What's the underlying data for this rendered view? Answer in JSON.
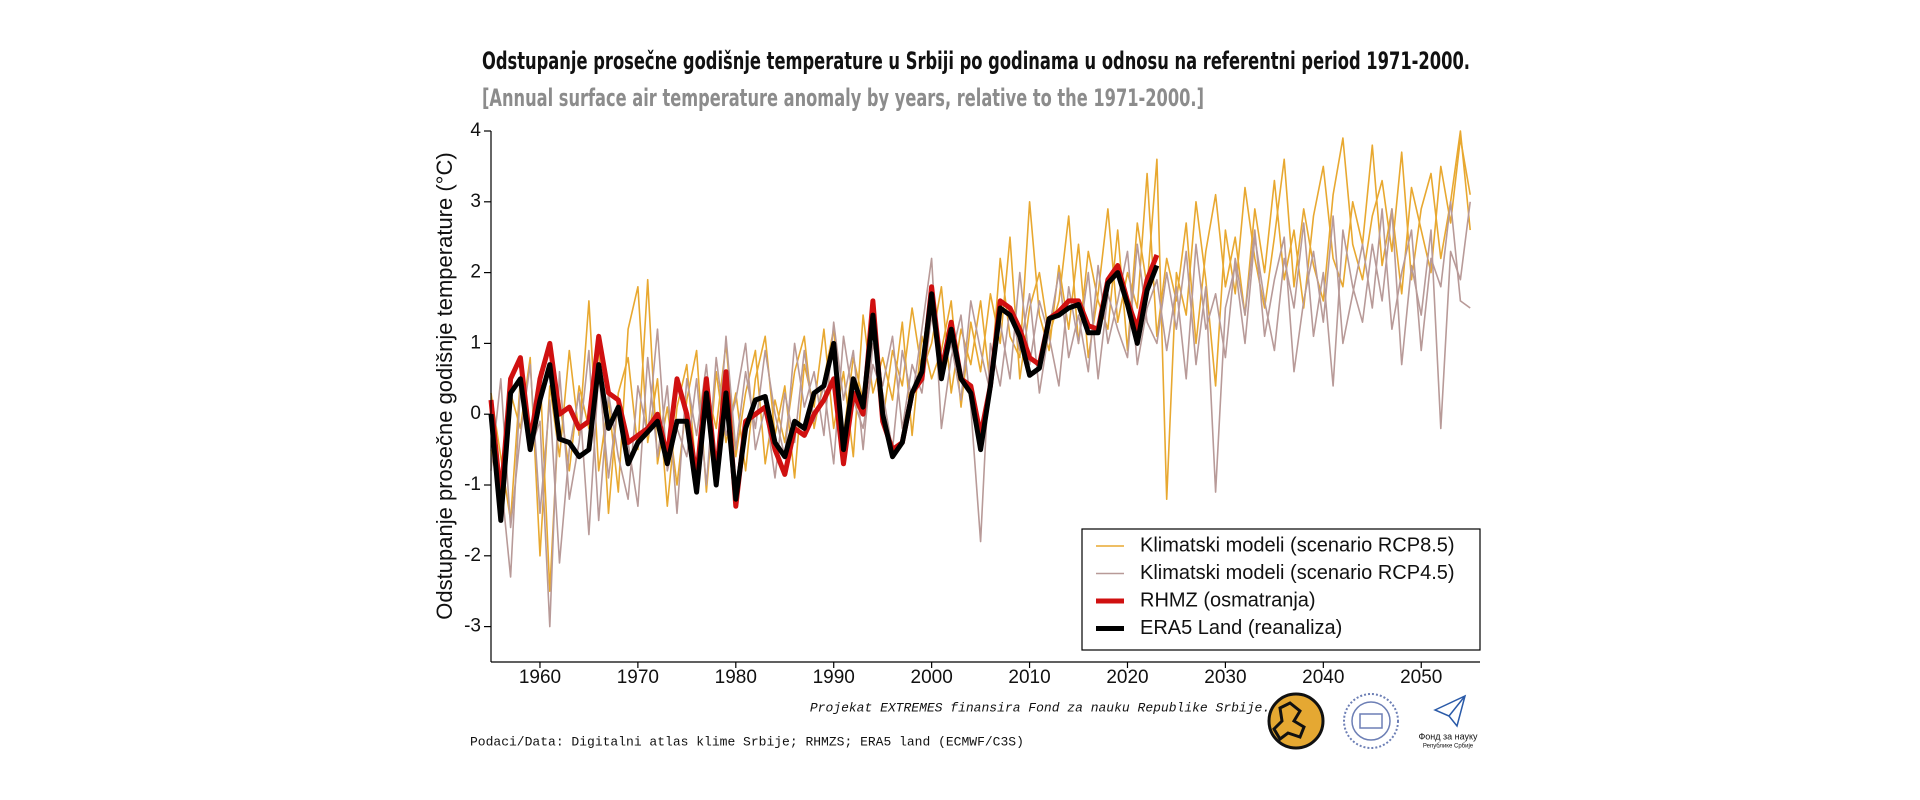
{
  "chart_data": {
    "type": "line",
    "title": "Odstupanje prosečne godišnje temperature u Srbiji po godinama u odnosu na referentni period 1971-2000.",
    "subtitle": "[Annual surface air temperature anomaly by years, relative to the 1971-2000.]",
    "y_label": "Odstupanje prosečne godišnje temperature (°C)",
    "funding_note": "Projekat EXTREMES finansira Fond za nauku Republike Srbije.",
    "source": "Podaci/Data: Digitalni atlas klime Srbije; RHMZS; ERA5 land (ECMWF/C3S)",
    "logo_text": [
      "Фонд за науку",
      "Републике Србије"
    ],
    "xlim": [
      1955,
      2056
    ],
    "ylim": [
      -3.5,
      4
    ],
    "xticks": [
      1960,
      1970,
      1980,
      1990,
      2000,
      2010,
      2020,
      2030,
      2040,
      2050
    ],
    "yticks": [
      -3,
      -2,
      -1,
      0,
      1,
      2,
      3,
      4
    ],
    "legend": "lower right",
    "x": [
      1955,
      1956,
      1957,
      1958,
      1959,
      1960,
      1961,
      1962,
      1963,
      1964,
      1965,
      1966,
      1967,
      1968,
      1969,
      1970,
      1971,
      1972,
      1973,
      1974,
      1975,
      1976,
      1977,
      1978,
      1979,
      1980,
      1981,
      1982,
      1983,
      1984,
      1985,
      1986,
      1987,
      1988,
      1989,
      1990,
      1991,
      1992,
      1993,
      1994,
      1995,
      1996,
      1997,
      1998,
      1999,
      2000,
      2001,
      2002,
      2003,
      2004,
      2005,
      2006,
      2007,
      2008,
      2009,
      2010,
      2011,
      2012,
      2013,
      2014,
      2015,
      2016,
      2017,
      2018,
      2019,
      2020,
      2021,
      2022,
      2023,
      2024,
      2025,
      2026,
      2027,
      2028,
      2029,
      2030,
      2031,
      2032,
      2033,
      2034,
      2035,
      2036,
      2037,
      2038,
      2039,
      2040,
      2041,
      2042,
      2043,
      2044,
      2045,
      2046,
      2047,
      2048,
      2049,
      2050,
      2051,
      2052,
      2053,
      2054,
      2055
    ],
    "series": [
      {
        "name": "Klimatski modeli (scenario RCP8.5)",
        "color": "#e8a830",
        "width": 1.6,
        "runs": [
          [
            -0.5,
            -1.2,
            0.3,
            -0.2,
            0.8,
            -2.0,
            0.4,
            -0.6,
            0.9,
            -0.3,
            1.6,
            -0.8,
            0.2,
            -1.1,
            1.2,
            1.8,
            -0.4,
            0.5,
            -1.3,
            0.1,
            0.7,
            -0.9,
            0.4,
            -0.2,
            1.0,
            -0.6,
            0.3,
            0.9,
            -0.7,
            0.2,
            -0.4,
            0.6,
            1.1,
            -0.2,
            0.5,
            1.2,
            -0.3,
            0.8,
            0.2,
            1.3,
            -0.1,
            0.9,
            0.4,
            1.5,
            0.6,
            1.0,
            1.8,
            0.3,
            1.2,
            0.7,
            1.6,
            0.4,
            2.2,
            1.1,
            0.8,
            3.0,
            1.4,
            0.9,
            2.1,
            1.2,
            2.4,
            0.8,
            1.7,
            2.9,
            1.3,
            2.0,
            1.5,
            3.4,
            1.1,
            2.2,
            1.6,
            2.7,
            1.0,
            2.3,
            3.1,
            1.8,
            2.5,
            1.4,
            2.9,
            2.0,
            3.3,
            1.9,
            2.6,
            1.5,
            2.8,
            3.5,
            2.2,
            1.8,
            3.0,
            2.4,
            3.8,
            2.1,
            2.9,
            1.7,
            3.2,
            2.6,
            2.0,
            3.5,
            2.7,
            3.9,
            3.1
          ],
          [
            0.3,
            -0.6,
            -1.5,
            0.5,
            -0.3,
            0.6,
            -2.5,
            0.2,
            -0.8,
            0.4,
            -0.2,
            1.0,
            -1.4,
            0.3,
            0.8,
            -0.5,
            1.9,
            -0.7,
            0.1,
            -1.0,
            0.2,
            0.9,
            -1.1,
            0.6,
            -0.4,
            0.3,
            -0.8,
            0.5,
            1.1,
            -0.3,
            0.4,
            -0.9,
            0.7,
            0.1,
            1.2,
            -0.2,
            0.6,
            -0.6,
            1.4,
            0.3,
            0.8,
            0.2,
            1.3,
            -0.3,
            1.1,
            0.5,
            0.9,
            1.6,
            0.1,
            1.3,
            0.6,
            1.7,
            1.0,
            2.5,
            0.5,
            1.5,
            2.0,
            1.1,
            1.6,
            2.8,
            1.0,
            2.3,
            1.6,
            1.2,
            2.6,
            0.9,
            2.7,
            1.8,
            3.6,
            -1.2,
            2.0,
            1.4,
            3.0,
            1.9,
            0.4,
            2.6,
            1.7,
            3.2,
            2.2,
            1.5,
            2.5,
            3.6,
            1.8,
            2.9,
            2.1,
            1.6,
            3.1,
            3.9,
            2.4,
            1.9,
            2.8,
            3.3,
            2.3,
            3.7,
            1.9,
            2.9,
            3.4,
            2.2,
            3.0,
            4.0,
            2.6
          ]
        ]
      },
      {
        "name": "Klimatski modeli (scenario RCP4.5)",
        "color": "#b89a98",
        "width": 1.6,
        "runs": [
          [
            0.1,
            -0.9,
            -2.3,
            0.4,
            -0.5,
            -0.1,
            -3.0,
            0.6,
            -1.2,
            -0.4,
            0.9,
            -1.5,
            0.3,
            -0.6,
            -1.2,
            0.4,
            -0.3,
            1.2,
            -0.8,
            -0.2,
            -0.6,
            0.5,
            -1.0,
            0.8,
            -0.3,
            0.2,
            1.0,
            -0.5,
            0.1,
            -0.9,
            0.3,
            -0.4,
            0.9,
            -0.1,
            0.4,
            -0.7,
            1.1,
            0.2,
            -0.2,
            0.7,
            0.3,
            -0.5,
            0.9,
            0.2,
            1.2,
            2.2,
            -0.2,
            0.8,
            1.4,
            0.1,
            -1.8,
            1.0,
            0.4,
            1.5,
            0.9,
            1.7,
            0.3,
            1.2,
            2.0,
            0.8,
            1.4,
            0.6,
            2.1,
            1.0,
            1.6,
            2.3,
            0.7,
            1.5,
            1.9,
            0.9,
            1.8,
            0.5,
            2.4,
            1.2,
            1.7,
            0.8,
            2.2,
            1.4,
            2.6,
            1.1,
            1.9,
            2.5,
            0.6,
            1.6,
            2.3,
            1.3,
            2.8,
            1.0,
            1.7,
            2.4,
            1.5,
            2.9,
            1.2,
            2.0,
            2.6,
            0.9,
            2.2,
            1.8,
            3.0,
            1.6,
            1.5
          ],
          [
            -0.8,
            0.5,
            -1.6,
            -0.3,
            0.7,
            -1.4,
            0.2,
            -2.1,
            -0.5,
            0.3,
            -1.7,
            0.6,
            -0.9,
            0.2,
            -0.4,
            -1.3,
            0.8,
            -0.6,
            0.4,
            -1.4,
            0.5,
            -0.3,
            0.7,
            -0.8,
            1.1,
            -0.5,
            0.6,
            -0.2,
            0.9,
            0.0,
            -0.6,
            1.0,
            0.1,
            0.6,
            -0.3,
            1.3,
            0.2,
            0.9,
            -0.5,
            1.0,
            0.4,
            1.1,
            -0.2,
            0.7,
            0.3,
            1.4,
            0.5,
            1.0,
            0.2,
            1.6,
            0.9,
            0.3,
            1.3,
            0.5,
            2.0,
            0.7,
            1.6,
            1.1,
            0.4,
            1.8,
            1.0,
            2.0,
            0.5,
            1.7,
            1.2,
            0.8,
            2.4,
            1.3,
            1.0,
            2.0,
            1.2,
            2.3,
            0.7,
            1.8,
            -1.1,
            1.5,
            2.1,
            1.0,
            2.5,
            1.6,
            0.9,
            2.2,
            1.5,
            2.7,
            1.1,
            2.0,
            0.4,
            2.6,
            1.8,
            1.3,
            2.4,
            1.6,
            2.9,
            0.7,
            2.1,
            1.4,
            2.6,
            -0.2,
            2.3,
            1.9,
            3.0
          ]
        ]
      },
      {
        "name": "RHMZ (osmatranja)",
        "color": "#d01010",
        "width": 5,
        "runs": [
          [
            0.2,
            -1.2,
            0.5,
            0.8,
            -0.4,
            0.5,
            1.0,
            0.0,
            0.1,
            -0.2,
            -0.1,
            1.1,
            0.3,
            0.2,
            -0.4,
            -0.3,
            -0.2,
            0.0,
            -0.6,
            0.5,
            0.0,
            -0.9,
            0.5,
            -0.9,
            0.6,
            -1.3,
            -0.1,
            0.0,
            0.1,
            -0.5,
            -0.85,
            -0.2,
            -0.3,
            0.0,
            0.2,
            0.5,
            -0.7,
            0.3,
            0.0,
            1.6,
            -0.1,
            -0.5,
            -0.4,
            0.3,
            0.5,
            1.8,
            0.6,
            1.3,
            0.5,
            0.4,
            -0.3,
            0.4,
            1.6,
            1.5,
            1.2,
            0.8,
            0.7,
            1.35,
            1.45,
            1.6,
            1.6,
            1.25,
            1.2,
            1.9,
            2.1,
            1.6,
            1.2,
            1.9,
            2.25,
            null,
            null,
            null,
            null,
            null,
            null,
            null,
            null,
            null,
            null,
            null,
            null,
            null,
            null,
            null,
            null,
            null,
            null,
            null,
            null,
            null,
            null,
            null,
            null,
            null,
            null,
            null,
            null,
            null,
            null,
            null,
            null,
            null
          ]
        ]
      },
      {
        "name": "ERA5 Land (reanaliza)",
        "color": "#000000",
        "width": 5,
        "runs": [
          [
            0.0,
            -1.5,
            0.3,
            0.5,
            -0.5,
            0.2,
            0.7,
            -0.35,
            -0.4,
            -0.6,
            -0.5,
            0.7,
            -0.2,
            0.1,
            -0.7,
            -0.4,
            -0.25,
            -0.1,
            -0.7,
            -0.1,
            -0.1,
            -1.1,
            0.3,
            -1.0,
            0.3,
            -1.2,
            -0.2,
            0.2,
            0.25,
            -0.4,
            -0.6,
            -0.1,
            -0.2,
            0.3,
            0.4,
            1.0,
            -0.5,
            0.5,
            0.1,
            1.4,
            0.0,
            -0.6,
            -0.4,
            0.3,
            0.6,
            1.7,
            0.5,
            1.2,
            0.5,
            0.3,
            -0.5,
            0.4,
            1.5,
            1.4,
            1.1,
            0.55,
            0.65,
            1.35,
            1.4,
            1.5,
            1.55,
            1.15,
            1.15,
            1.85,
            2.0,
            1.55,
            1.0,
            1.75,
            2.1,
            null,
            null,
            null,
            null,
            null,
            null,
            null,
            null,
            null,
            null,
            null,
            null,
            null,
            null,
            null,
            null,
            null,
            null,
            null,
            null,
            null,
            null,
            null,
            null,
            null,
            null,
            null,
            null,
            null,
            null,
            null,
            null,
            null
          ]
        ]
      }
    ]
  }
}
